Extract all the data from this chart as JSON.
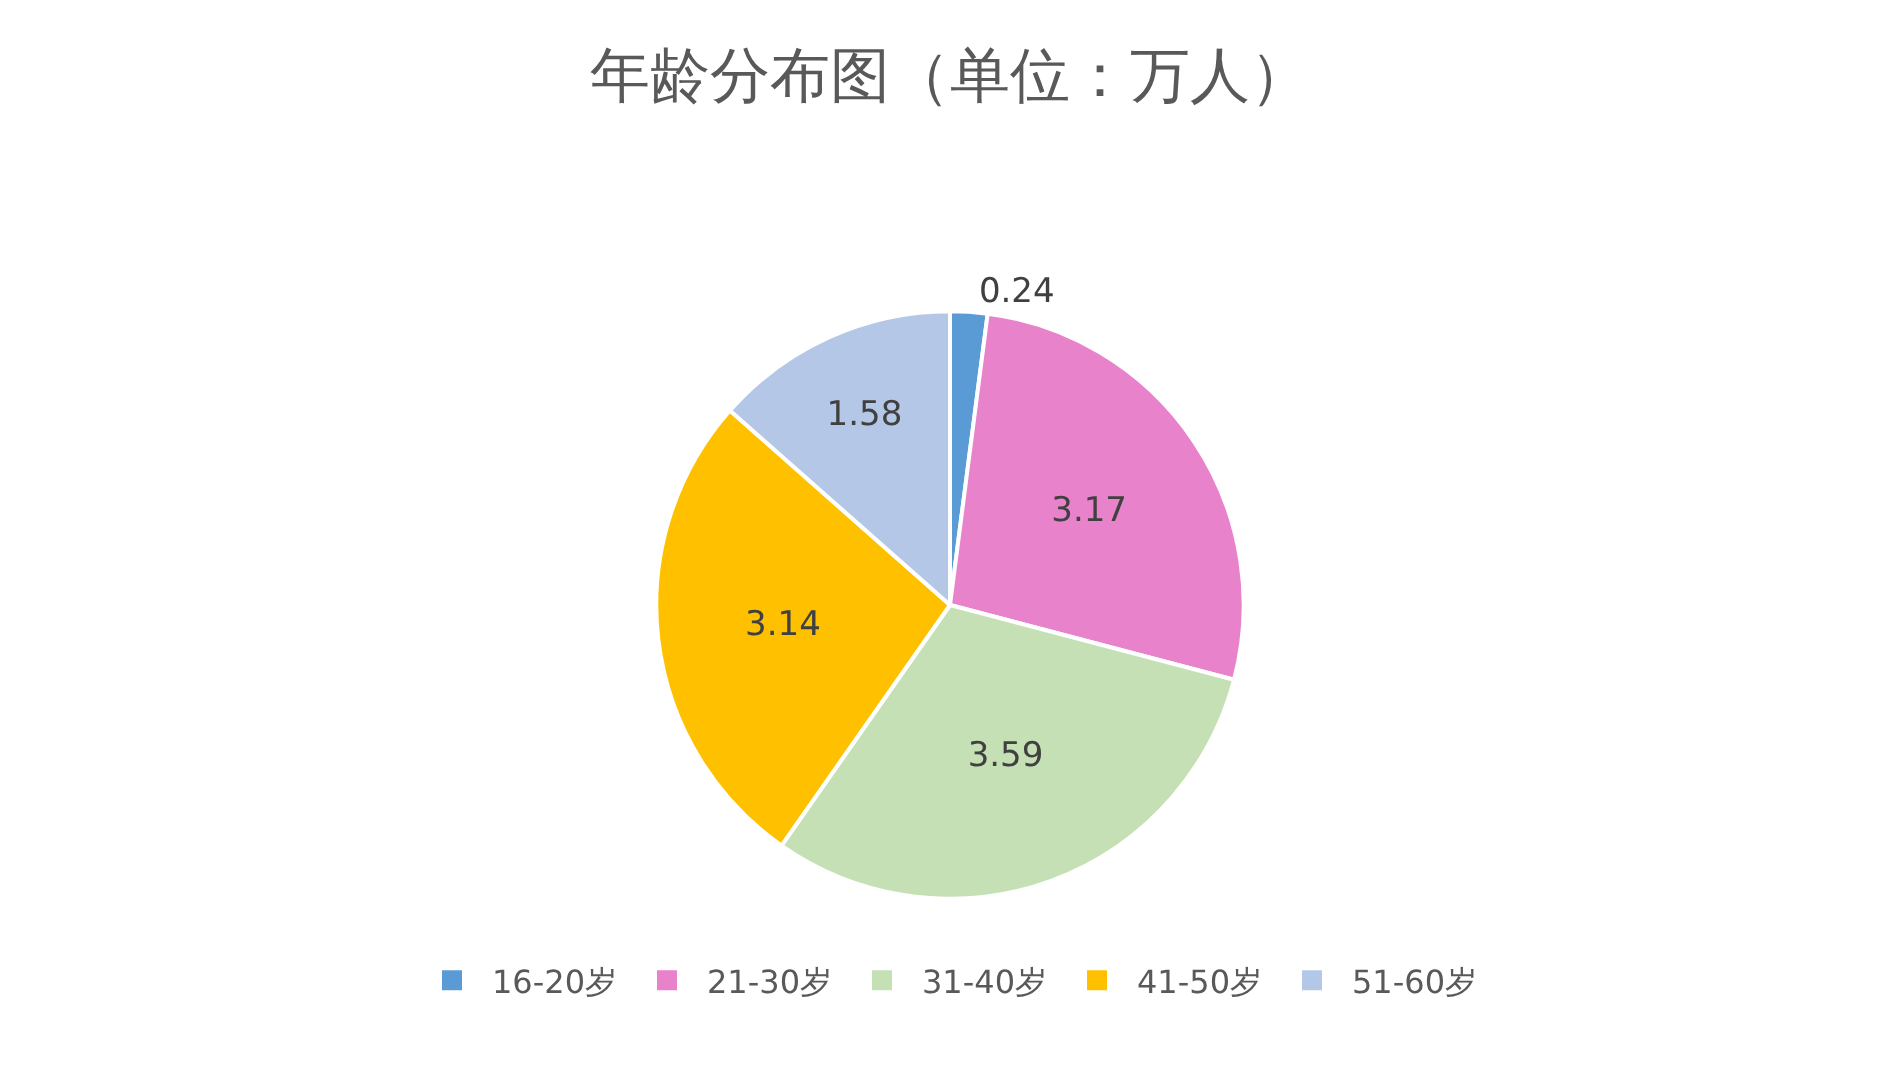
{
  "chart_data": {
    "type": "pie",
    "title": "年龄分布图（单位：万人）",
    "categories": [
      "16-20岁",
      "21-30岁",
      "31-40岁",
      "41-50岁",
      "51-60岁"
    ],
    "values": [
      0.24,
      3.17,
      3.59,
      3.14,
      1.58
    ],
    "colors": [
      "#5b9bd5",
      "#e882cb",
      "#c5e0b4",
      "#ffc000",
      "#b4c7e7"
    ],
    "data_labels": true,
    "legend": "bottom"
  }
}
